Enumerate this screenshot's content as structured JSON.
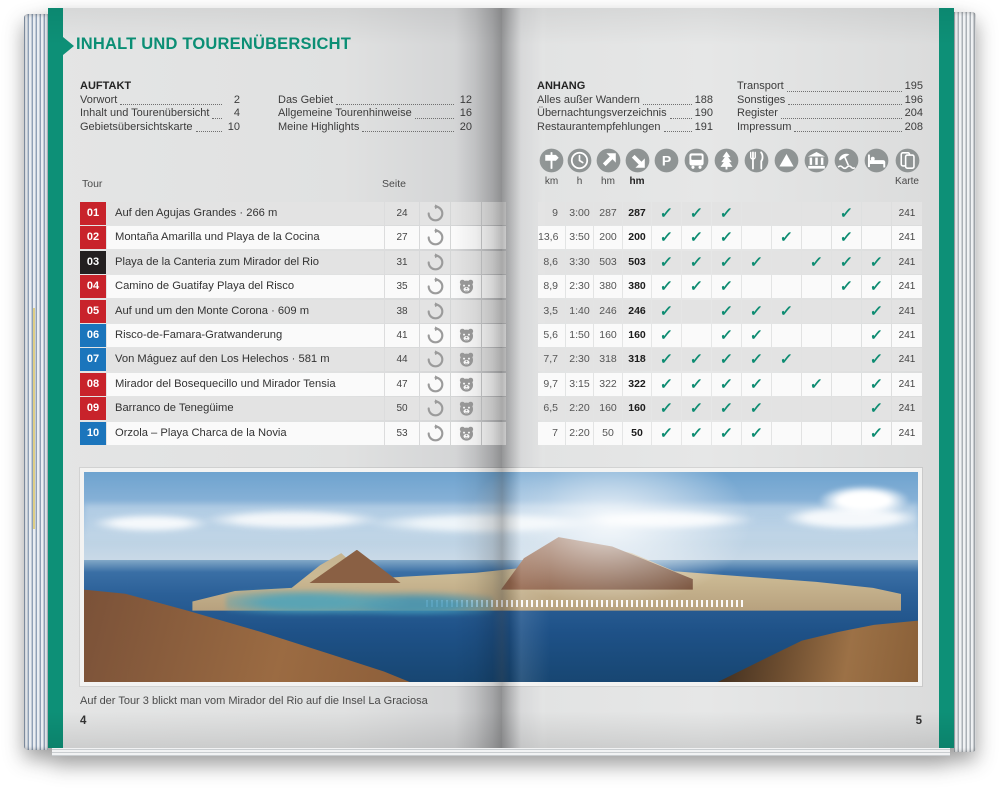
{
  "book": {
    "title": "INHALT UND TOURENÜBERSICHT",
    "toc_left": {
      "heading": "AUFTAKT",
      "col1": [
        {
          "label": "Vorwort",
          "page": "2"
        },
        {
          "label": "Inhalt und Tourenübersicht",
          "page": "4"
        },
        {
          "label": "Gebietsübersichtskarte",
          "page": "10"
        }
      ],
      "col2": [
        {
          "label": "Das Gebiet",
          "page": "12"
        },
        {
          "label": "Allgemeine Tourenhinweise",
          "page": "16"
        },
        {
          "label": "Meine Highlights",
          "page": "20"
        }
      ]
    },
    "toc_right": {
      "heading": "ANHANG",
      "col1": [
        {
          "label": "Alles außer Wandern",
          "page": "188"
        },
        {
          "label": "Übernachtungsverzeichnis",
          "page": "190"
        },
        {
          "label": "Restaurantempfehlungen",
          "page": "191"
        }
      ],
      "col2": [
        {
          "label": "Transport",
          "page": "195"
        },
        {
          "label": "Sonstiges",
          "page": "196"
        },
        {
          "label": "Register",
          "page": "204"
        },
        {
          "label": "Impressum",
          "page": "208"
        }
      ]
    },
    "table": {
      "tour_header": "Tour",
      "seite_header": "Seite",
      "columns": [
        {
          "key": "km",
          "icon": "signpost-icon",
          "label": "km"
        },
        {
          "key": "h",
          "icon": "clock-icon",
          "label": "h"
        },
        {
          "key": "up",
          "icon": "ascent-arrow-icon",
          "label": "hm"
        },
        {
          "key": "down",
          "icon": "descent-arrow-icon",
          "label": "hm",
          "bold_label": true
        },
        {
          "key": "parking",
          "icon": "parking-icon"
        },
        {
          "key": "bus",
          "icon": "bus-icon"
        },
        {
          "key": "tree",
          "icon": "tree-icon"
        },
        {
          "key": "restaurant",
          "icon": "restaurant-icon"
        },
        {
          "key": "peak",
          "icon": "peak-icon"
        },
        {
          "key": "museum",
          "icon": "museum-icon"
        },
        {
          "key": "beach",
          "icon": "beach-icon"
        },
        {
          "key": "bed",
          "icon": "bed-icon"
        },
        {
          "key": "karte",
          "icon": "map-icon",
          "label": "Karte"
        }
      ],
      "tours": [
        {
          "no": "01",
          "color": "red",
          "name": "Auf den Agujas Grandes · 266 m",
          "seite": "24",
          "round": true,
          "family": false,
          "km": "9",
          "h": "3:00",
          "up": "287",
          "down": "287",
          "features": [
            "parking",
            "bus",
            "tree",
            "beach"
          ],
          "karte": "241"
        },
        {
          "no": "02",
          "color": "red",
          "name": "Montaña Amarilla und Playa de la Cocina",
          "seite": "27",
          "round": true,
          "family": false,
          "km": "13,6",
          "h": "3:50",
          "up": "200",
          "down": "200",
          "features": [
            "parking",
            "bus",
            "tree",
            "peak",
            "beach"
          ],
          "karte": "241"
        },
        {
          "no": "03",
          "color": "black",
          "name": "Playa de la Canteria zum Mirador del Rio",
          "seite": "31",
          "round": true,
          "family": false,
          "km": "8,6",
          "h": "3:30",
          "up": "503",
          "down": "503",
          "features": [
            "parking",
            "bus",
            "tree",
            "restaurant",
            "museum",
            "beach",
            "bed"
          ],
          "karte": "241"
        },
        {
          "no": "04",
          "color": "red",
          "name": "Camino de Guatifay Playa del Risco",
          "seite": "35",
          "round": true,
          "family": true,
          "km": "8,9",
          "h": "2:30",
          "up": "380",
          "down": "380",
          "features": [
            "parking",
            "bus",
            "tree",
            "beach",
            "bed"
          ],
          "karte": "241"
        },
        {
          "no": "05",
          "color": "red",
          "name": "Auf und um den Monte Corona · 609 m",
          "seite": "38",
          "round": true,
          "family": false,
          "km": "3,5",
          "h": "1:40",
          "up": "246",
          "down": "246",
          "features": [
            "parking",
            "tree",
            "restaurant",
            "peak",
            "bed"
          ],
          "karte": "241"
        },
        {
          "no": "06",
          "color": "blue",
          "name": "Risco-de-Famara-Gratwanderung",
          "seite": "41",
          "round": true,
          "family": true,
          "km": "5,6",
          "h": "1:50",
          "up": "160",
          "down": "160",
          "features": [
            "parking",
            "tree",
            "restaurant",
            "bed"
          ],
          "karte": "241"
        },
        {
          "no": "07",
          "color": "blue",
          "name": "Von Máguez auf den Los Helechos · 581 m",
          "seite": "44",
          "round": true,
          "family": true,
          "km": "7,7",
          "h": "2:30",
          "up": "318",
          "down": "318",
          "features": [
            "parking",
            "bus",
            "tree",
            "restaurant",
            "peak",
            "bed"
          ],
          "karte": "241"
        },
        {
          "no": "08",
          "color": "red",
          "name": "Mirador del Bosequecillo und Mirador Tensia",
          "seite": "47",
          "round": true,
          "family": true,
          "km": "9,7",
          "h": "3:15",
          "up": "322",
          "down": "322",
          "features": [
            "parking",
            "bus",
            "tree",
            "restaurant",
            "museum",
            "bed"
          ],
          "karte": "241"
        },
        {
          "no": "09",
          "color": "red",
          "name": "Barranco de Tenegüime",
          "seite": "50",
          "round": true,
          "family": true,
          "km": "6,5",
          "h": "2:20",
          "up": "160",
          "down": "160",
          "features": [
            "parking",
            "bus",
            "tree",
            "restaurant",
            "bed"
          ],
          "karte": "241"
        },
        {
          "no": "10",
          "color": "blue",
          "name": "Orzola – Playa Charca de la Novia",
          "seite": "53",
          "round": true,
          "family": true,
          "km": "7",
          "h": "2:20",
          "up": "50",
          "down": "50",
          "features": [
            "parking",
            "bus",
            "tree",
            "restaurant",
            "bed"
          ],
          "karte": "241"
        }
      ]
    },
    "caption": "Auf der Tour 3 blickt man vom Mirador del Rio auf die Insel La Graciosa",
    "page_left": "4",
    "page_right": "5",
    "colors": {
      "accent": "#0d9077",
      "tour_red": "#c8232b",
      "tour_black": "#231f20",
      "tour_blue": "#1b75bc",
      "check": "#0e8c72"
    }
  }
}
